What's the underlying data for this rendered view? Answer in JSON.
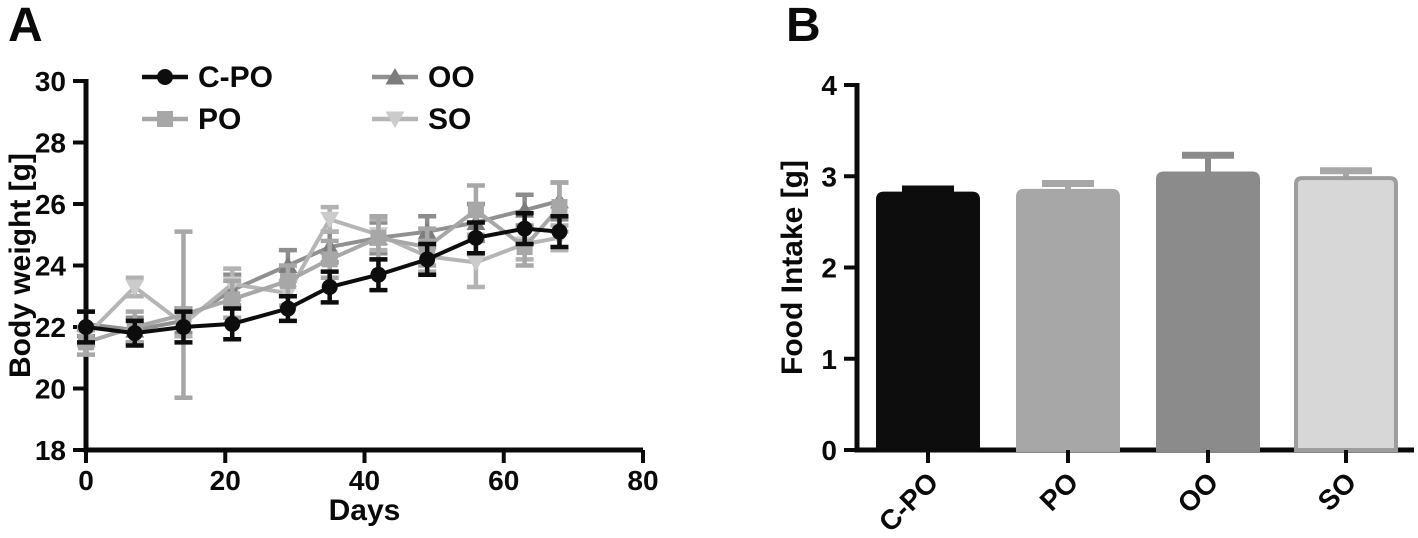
{
  "figure": {
    "background": "#ffffff",
    "panels": [
      {
        "letter": "A"
      },
      {
        "letter": "B"
      }
    ]
  },
  "chart_data": [
    {
      "type": "line",
      "panel": "A",
      "title": "",
      "xlabel": "Days",
      "ylabel": "Body weight [g]",
      "xlim": [
        0,
        80
      ],
      "ylim": [
        18,
        30
      ],
      "xticks": [
        0,
        20,
        40,
        60,
        80
      ],
      "yticks": [
        18,
        20,
        22,
        24,
        26,
        28,
        30
      ],
      "grid": false,
      "legend_position": "top-left-inside",
      "legend_columns": 2,
      "error_bars": "plus-minus",
      "x": [
        0,
        7,
        14,
        21,
        29,
        35,
        42,
        49,
        56,
        63,
        68
      ],
      "series": [
        {
          "name": "C-PO",
          "marker": "circle",
          "marker_color": "#0d0d0d",
          "line_color": "#0d0d0d",
          "error_color": "#0d0d0d",
          "values": [
            22.0,
            21.8,
            22.0,
            22.1,
            22.6,
            23.3,
            23.7,
            24.2,
            24.9,
            25.2,
            25.1
          ],
          "errors": [
            0.5,
            0.4,
            0.5,
            0.5,
            0.4,
            0.5,
            0.5,
            0.5,
            0.5,
            0.5,
            0.5
          ]
        },
        {
          "name": "PO",
          "marker": "square",
          "marker_color": "#a7a7a7",
          "line_color": "#a7a7a7",
          "error_color": "#a7a7a7",
          "values": [
            21.5,
            22.0,
            22.4,
            22.9,
            23.5,
            24.2,
            24.9,
            24.6,
            25.8,
            24.6,
            25.9
          ],
          "errors": [
            0.4,
            0.5,
            2.7,
            0.6,
            0.5,
            0.6,
            0.7,
            0.6,
            0.8,
            0.6,
            0.8
          ]
        },
        {
          "name": "OO",
          "marker": "triangle-up",
          "marker_color": "#7c7c7c",
          "line_color": "#909090",
          "error_color": "#8d8d8d",
          "values": [
            22.1,
            21.9,
            22.2,
            23.2,
            24.0,
            24.6,
            24.9,
            25.1,
            25.4,
            25.8,
            26.1
          ],
          "errors": [
            0.4,
            0.4,
            0.4,
            0.5,
            0.5,
            0.5,
            0.5,
            0.5,
            0.6,
            0.5,
            0.6
          ]
        },
        {
          "name": "SO",
          "marker": "triangle-down",
          "marker_color": "#cbcbcb",
          "line_color": "#b5b5b5",
          "error_color": "#b2b2b2",
          "values": [
            21.7,
            23.3,
            22.1,
            23.4,
            23.1,
            25.5,
            25.0,
            24.3,
            24.1,
            24.7,
            24.9
          ],
          "errors": [
            0.3,
            0.3,
            0.4,
            0.5,
            0.4,
            0.4,
            0.5,
            0.5,
            0.8,
            0.5,
            0.4
          ]
        }
      ]
    },
    {
      "type": "bar",
      "panel": "B",
      "title": "",
      "xlabel": "",
      "ylabel": "Food Intake [g]",
      "ylim": [
        0,
        4
      ],
      "yticks": [
        0,
        1,
        2,
        3,
        4
      ],
      "grid": false,
      "error_bars": "plus-only",
      "categories": [
        "C-PO",
        "PO",
        "OO",
        "SO"
      ],
      "values": [
        2.81,
        2.84,
        3.03,
        2.98
      ],
      "errors": [
        0.05,
        0.08,
        0.2,
        0.08
      ],
      "bar_fill_colors": [
        "#0d0d0d",
        "#a7a7a7",
        "#8b8b8b",
        "#d7d7d7"
      ],
      "bar_border_colors": [
        "#0d0d0d",
        "#a7a7a7",
        "#8b8b8b",
        "#9d9d9d"
      ],
      "error_colors": [
        "#0d0d0d",
        "#a7a7a7",
        "#8b8b8b",
        "#a7a7a7"
      ]
    }
  ]
}
